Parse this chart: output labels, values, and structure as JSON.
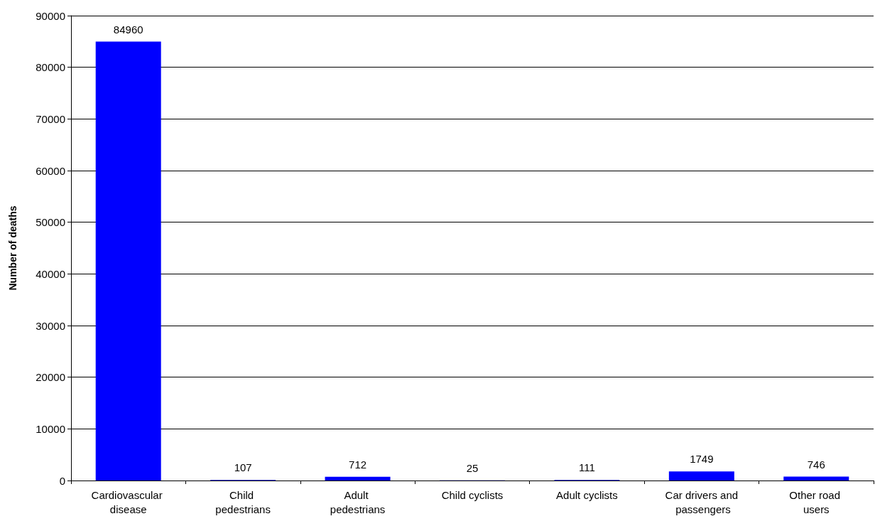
{
  "chart_data": {
    "type": "bar",
    "ylabel": "Number of deaths",
    "categories": [
      "Cardiovascular disease",
      "Child pedestrians",
      "Adult pedestrians",
      "Child cyclists",
      "Adult cyclists",
      "Car drivers and passengers",
      "Other road users"
    ],
    "values": [
      84960,
      107,
      712,
      25,
      111,
      1749,
      746
    ],
    "color": "#0000ff",
    "ylim": [
      0,
      90000
    ],
    "yticks": [
      0,
      10000,
      20000,
      30000,
      40000,
      50000,
      60000,
      70000,
      80000,
      90000
    ],
    "grid": "y",
    "data_labels": true
  }
}
